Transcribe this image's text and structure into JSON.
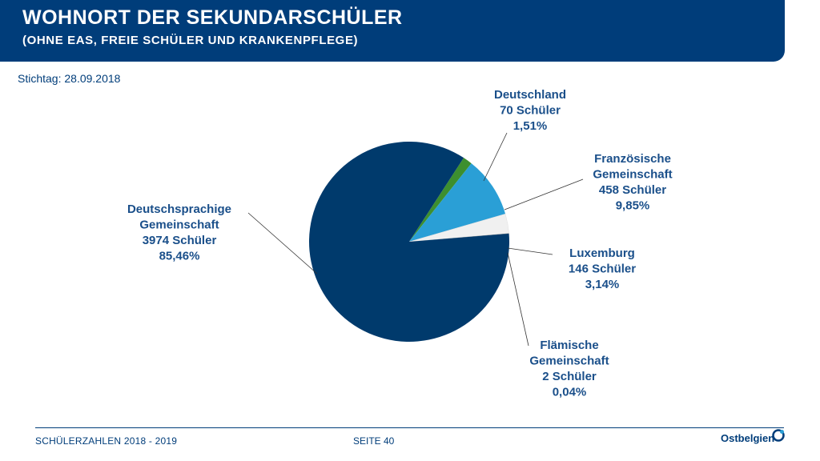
{
  "header": {
    "title": "WOHNORT DER SEKUNDARSCHÜLER",
    "subtitle": "(OHNE EAS, FREIE SCHÜLER UND KRANKENPFLEGE)"
  },
  "stichtag": "Stichtag: 28.09.2018",
  "footer": {
    "left": "SCHÜLERZAHLEN 2018 - 2019",
    "page": "SEITE 40",
    "logo": "Ostbelgien"
  },
  "colors": {
    "header": "#003d7a",
    "deutschsprachige": "#003a6c",
    "deutschland": "#3d8f2f",
    "franzoesische": "#2a9fd6",
    "luxemburg": "#f0f0f0",
    "flaemische": "#7a7a7a",
    "label": "#1a4f8a"
  },
  "chart_data": {
    "type": "pie",
    "title": "",
    "slices": [
      {
        "key": "deutschland",
        "lines": [
          "Deutschland",
          "70 Schüler",
          "1,51%"
        ],
        "value": 70,
        "percent": 1.51
      },
      {
        "key": "franzoesische",
        "lines": [
          "Französische",
          "Gemeinschaft",
          "458 Schüler",
          "9,85%"
        ],
        "value": 458,
        "percent": 9.85
      },
      {
        "key": "luxemburg",
        "lines": [
          "Luxemburg",
          "146 Schüler",
          "3,14%"
        ],
        "value": 146,
        "percent": 3.14
      },
      {
        "key": "flaemische",
        "lines": [
          "Flämische",
          "Gemeinschaft",
          "2 Schüler",
          "0,04%"
        ],
        "value": 2,
        "percent": 0.04
      },
      {
        "key": "deutschsprachige",
        "lines": [
          "Deutschsprachige",
          "Gemeinschaft",
          "3974 Schüler",
          "85,46%"
        ],
        "value": 3974,
        "percent": 85.46
      }
    ]
  }
}
